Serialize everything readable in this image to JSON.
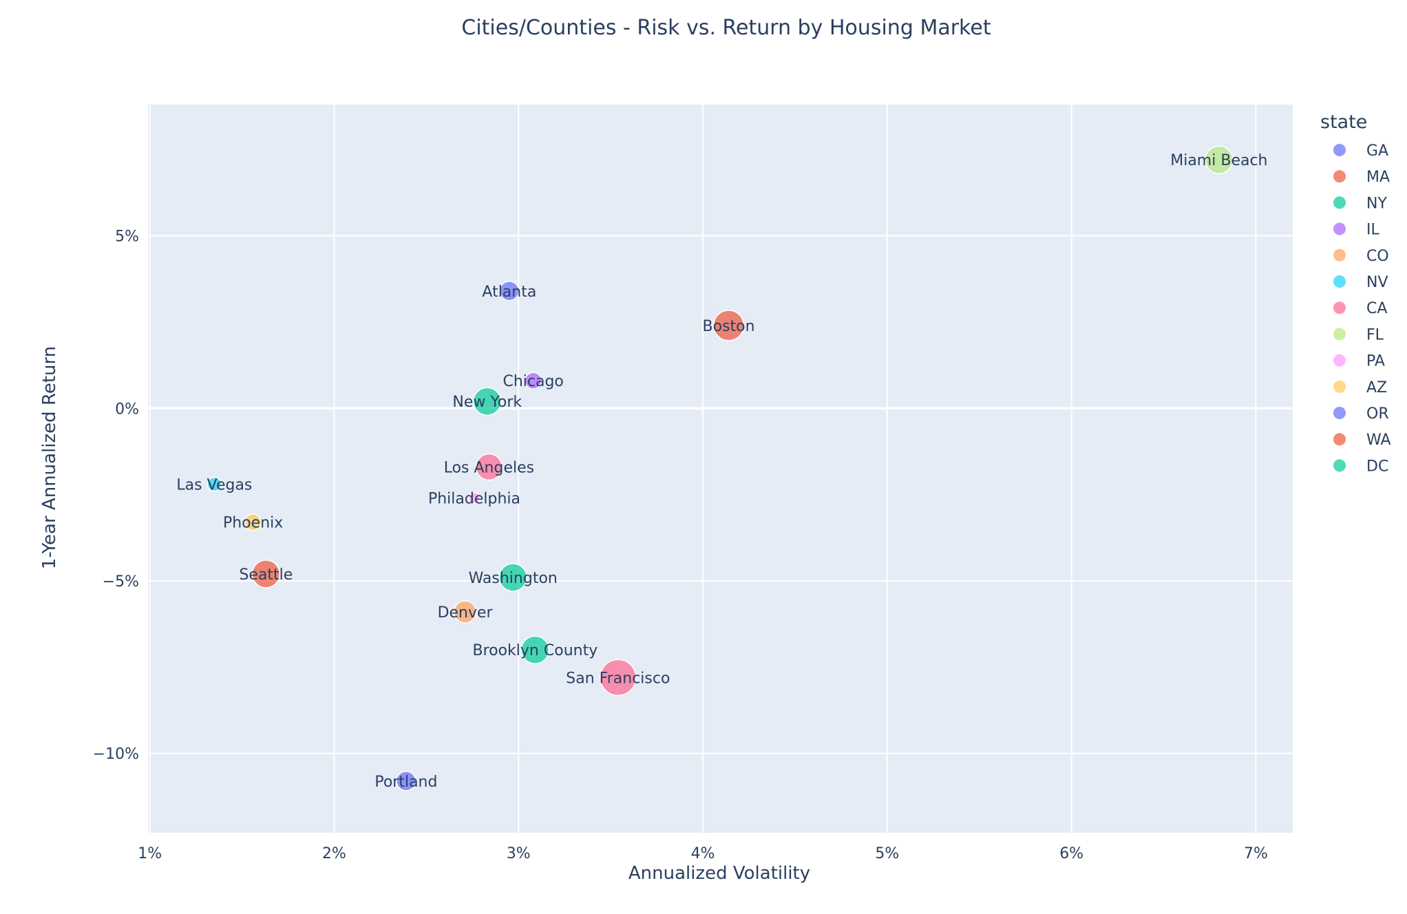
{
  "chart_data": {
    "type": "scatter",
    "title": "Cities/Counties - Risk vs. Return by Housing Market",
    "xlabel": "Annualized Volatility",
    "ylabel": "1-Year Annualized Return",
    "xlim": [
      0.99,
      7.2
    ],
    "ylim": [
      -12.3,
      8.8
    ],
    "x_ticks": [
      1,
      2,
      3,
      4,
      5,
      6,
      7
    ],
    "x_tick_labels": [
      "1%",
      "2%",
      "3%",
      "4%",
      "5%",
      "6%",
      "7%"
    ],
    "y_ticks": [
      -10,
      -5,
      0,
      5
    ],
    "y_tick_labels": [
      "−10%",
      "−5%",
      "0%",
      "5%"
    ],
    "grid": true,
    "plot_background": "#e5ecf6",
    "legend": {
      "title": "state",
      "placement": "right"
    },
    "series": [
      {
        "name": "GA",
        "color": "#636efa",
        "points": [
          {
            "label": "Atlanta",
            "x": 2.95,
            "y": 3.4,
            "size": 14
          }
        ]
      },
      {
        "name": "MA",
        "color": "#EF553B",
        "points": [
          {
            "label": "Boston",
            "x": 4.14,
            "y": 2.4,
            "size": 22
          }
        ]
      },
      {
        "name": "NY",
        "color": "#00cc96",
        "points": [
          {
            "label": "New York",
            "x": 2.83,
            "y": 0.2,
            "size": 20
          },
          {
            "label": "Brooklyn County",
            "x": 3.09,
            "y": -7.0,
            "size": 20
          }
        ]
      },
      {
        "name": "IL",
        "color": "#ab63fa",
        "points": [
          {
            "label": "Chicago",
            "x": 3.08,
            "y": 0.8,
            "size": 12
          }
        ]
      },
      {
        "name": "CO",
        "color": "#FFA15A",
        "points": [
          {
            "label": "Denver",
            "x": 2.71,
            "y": -5.9,
            "size": 16
          }
        ]
      },
      {
        "name": "NV",
        "color": "#19d3f3",
        "points": [
          {
            "label": "Las Vegas",
            "x": 1.35,
            "y": -2.2,
            "size": 10
          }
        ]
      },
      {
        "name": "CA",
        "color": "#FF6692",
        "points": [
          {
            "label": "Los Angeles",
            "x": 2.84,
            "y": -1.7,
            "size": 19
          },
          {
            "label": "San Francisco",
            "x": 3.54,
            "y": -7.8,
            "size": 26
          }
        ]
      },
      {
        "name": "FL",
        "color": "#B6E880",
        "points": [
          {
            "label": "Miami Beach",
            "x": 6.8,
            "y": 7.2,
            "size": 20
          }
        ]
      },
      {
        "name": "PA",
        "color": "#FF97FF",
        "points": [
          {
            "label": "Philadelphia",
            "x": 2.76,
            "y": -2.6,
            "size": 8
          }
        ]
      },
      {
        "name": "AZ",
        "color": "#FECB52",
        "points": [
          {
            "label": "Phoenix",
            "x": 1.56,
            "y": -3.3,
            "size": 12
          }
        ]
      },
      {
        "name": "OR",
        "color": "#636efa",
        "points": [
          {
            "label": "Portland",
            "x": 2.39,
            "y": -10.8,
            "size": 14
          }
        ]
      },
      {
        "name": "WA",
        "color": "#EF553B",
        "points": [
          {
            "label": "Seattle",
            "x": 1.63,
            "y": -4.8,
            "size": 20
          }
        ]
      },
      {
        "name": "DC",
        "color": "#00cc96",
        "points": [
          {
            "label": "Washington",
            "x": 2.97,
            "y": -4.9,
            "size": 20
          }
        ]
      }
    ]
  }
}
